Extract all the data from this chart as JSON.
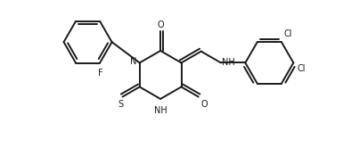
{
  "background_color": "#ffffff",
  "line_color": "#1a1a1a",
  "line_width": 1.4,
  "font_size": 7.0,
  "fig_width": 3.94,
  "fig_height": 1.66,
  "dpi": 100,
  "xlim": [
    0,
    10
  ],
  "ylim": [
    0,
    4.35
  ]
}
